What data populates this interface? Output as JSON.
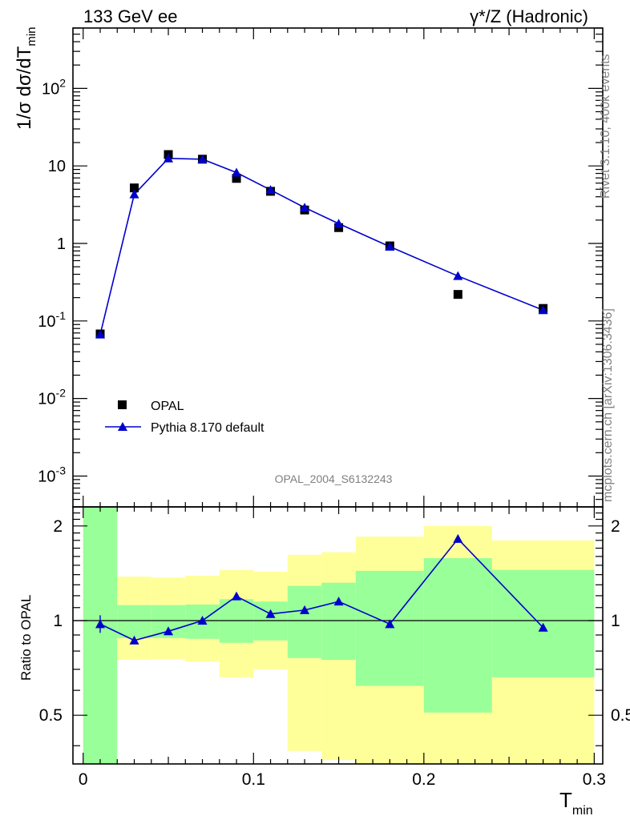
{
  "header": {
    "left": "133 GeV ee",
    "right": "γ*/Z (Hadronic)"
  },
  "side_labels": {
    "rivet": "Rivet 3.1.10,  400k events",
    "mcplots": "mcplots.cern.ch [arXiv:1306.3436]"
  },
  "watermark": "OPAL_2004_S6132243",
  "legend": {
    "data_label": "OPAL",
    "mc_label": "Pythia 8.170 default"
  },
  "colors": {
    "data": "#000000",
    "mc": "#0000cc",
    "band_inner": "#99ff99",
    "band_outer": "#ffff99"
  },
  "chart_data": [
    {
      "type": "scatter",
      "role": "main-distribution",
      "ylabel": "1/σ dσ/dT_min",
      "yscale": "log",
      "ylim": [
        0.0004,
        600
      ],
      "xlim": [
        -0.006,
        0.305
      ],
      "y_ticks": [
        "10^-3",
        "10^-2",
        "10^-1",
        "1",
        "10",
        "10^2"
      ],
      "series": [
        {
          "name": "OPAL",
          "marker": "square",
          "x": [
            0.01,
            0.03,
            0.05,
            0.07,
            0.09,
            0.11,
            0.13,
            0.15,
            0.18,
            0.22,
            0.27
          ],
          "y": [
            0.068,
            5.2,
            14.0,
            12.2,
            6.9,
            4.7,
            2.7,
            1.6,
            0.93,
            0.22,
            0.145
          ]
        },
        {
          "name": "Pythia 8.170 default",
          "marker": "triangle",
          "x": [
            0.01,
            0.03,
            0.05,
            0.07,
            0.09,
            0.11,
            0.13,
            0.15,
            0.18,
            0.22,
            0.27
          ],
          "y": [
            0.067,
            4.3,
            12.5,
            12.2,
            8.2,
            4.9,
            2.9,
            1.8,
            0.91,
            0.38,
            0.138
          ]
        }
      ]
    },
    {
      "type": "line",
      "role": "ratio",
      "ylabel": "Ratio to OPAL",
      "xlabel": "T_min",
      "ylim": [
        0.35,
        2.3
      ],
      "xlim": [
        -0.006,
        0.305
      ],
      "x_ticks": [
        "0",
        "0.1",
        "0.2",
        "0.3"
      ],
      "y_ticks": [
        "0.5",
        "1",
        "2"
      ],
      "series": [
        {
          "name": "Pythia 8.170 default",
          "x": [
            0.01,
            0.03,
            0.05,
            0.07,
            0.09,
            0.11,
            0.13,
            0.15,
            0.18,
            0.22,
            0.27
          ],
          "y": [
            0.975,
            0.865,
            0.925,
            1.0,
            1.195,
            1.05,
            1.08,
            1.15,
            0.975,
            1.82,
            0.95
          ]
        }
      ],
      "bands": [
        {
          "x0": 0.0,
          "x1": 0.02,
          "inner": [
            0.3,
            2.4
          ],
          "outer": [
            0.3,
            2.4
          ]
        },
        {
          "x0": 0.02,
          "x1": 0.04,
          "inner": [
            0.88,
            1.12
          ],
          "outer": [
            0.75,
            1.38
          ]
        },
        {
          "x0": 0.04,
          "x1": 0.06,
          "inner": [
            0.88,
            1.12
          ],
          "outer": [
            0.755,
            1.37
          ]
        },
        {
          "x0": 0.06,
          "x1": 0.08,
          "inner": [
            0.875,
            1.125
          ],
          "outer": [
            0.74,
            1.39
          ]
        },
        {
          "x0": 0.08,
          "x1": 0.1,
          "inner": [
            0.85,
            1.17
          ],
          "outer": [
            0.66,
            1.45
          ]
        },
        {
          "x0": 0.1,
          "x1": 0.12,
          "inner": [
            0.865,
            1.15
          ],
          "outer": [
            0.7,
            1.43
          ]
        },
        {
          "x0": 0.12,
          "x1": 0.14,
          "inner": [
            0.76,
            1.29
          ],
          "outer": [
            0.385,
            1.62
          ]
        },
        {
          "x0": 0.14,
          "x1": 0.16,
          "inner": [
            0.75,
            1.32
          ],
          "outer": [
            0.36,
            1.65
          ]
        },
        {
          "x0": 0.16,
          "x1": 0.2,
          "inner": [
            0.62,
            1.44
          ],
          "outer": [
            0.33,
            1.85
          ]
        },
        {
          "x0": 0.2,
          "x1": 0.24,
          "inner": [
            0.51,
            1.58
          ],
          "outer": [
            0.33,
            2.0
          ]
        },
        {
          "x0": 0.24,
          "x1": 0.3,
          "inner": [
            0.66,
            1.45
          ],
          "outer": [
            0.33,
            1.8
          ]
        }
      ]
    }
  ]
}
